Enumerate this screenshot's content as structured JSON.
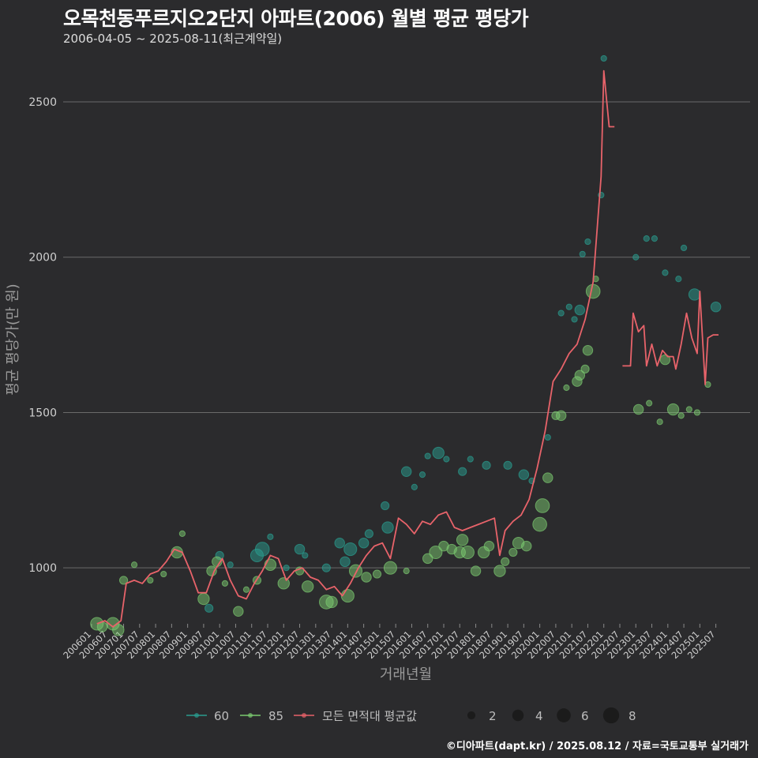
{
  "header": {
    "title": "오목천동푸르지오2단지 아파트(2006) 월별 평균 평당가",
    "subtitle": "2006-04-05 ~ 2025-08-11(최근계약일)"
  },
  "caption": "©디아파트(dapt.kr) / 2025.08.12 / 자료=국토교통부 실거래가",
  "colors": {
    "s60": "#2a9d8f",
    "s85": "#7bc96f",
    "avg": "#e8636a",
    "grid": "#6a6a6a"
  },
  "chart_data": {
    "type": "scatter",
    "title": "오목천동푸르지오2단지 아파트(2006) 월별 평균 평당가",
    "xlabel": "거래년월",
    "ylabel": "평균 평당가(만 원)",
    "ylim": [
      820,
      2650
    ],
    "yticks": [
      1000,
      1500,
      2000,
      2500
    ],
    "xlim": [
      "200601",
      "202508"
    ],
    "xticks": [
      "200601",
      "200607",
      "200701",
      "200707",
      "200801",
      "200807",
      "200901",
      "200907",
      "201001",
      "201007",
      "201101",
      "201107",
      "201201",
      "201207",
      "201301",
      "201307",
      "201401",
      "201407",
      "201501",
      "201507",
      "201601",
      "201607",
      "201701",
      "201707",
      "201801",
      "201807",
      "201901",
      "201907",
      "202001",
      "202007",
      "202101",
      "202107",
      "202201",
      "202207",
      "202301",
      "202307",
      "202401",
      "202407",
      "202501",
      "202507"
    ],
    "legend": {
      "series": [
        {
          "name": "60"
        },
        {
          "name": "85"
        },
        {
          "name": "모든 면적대 평균값"
        }
      ],
      "sizes": [
        2,
        4,
        6,
        8
      ]
    },
    "series": [
      {
        "name": "60",
        "type": "scatter",
        "points": [
          {
            "x": "200909",
            "y": 870,
            "n": 2
          },
          {
            "x": "201001",
            "y": 1040,
            "n": 2
          },
          {
            "x": "201005",
            "y": 1010,
            "n": 1
          },
          {
            "x": "201103",
            "y": 1040,
            "n": 5
          },
          {
            "x": "201105",
            "y": 1060,
            "n": 6
          },
          {
            "x": "201108",
            "y": 1100,
            "n": 1
          },
          {
            "x": "201202",
            "y": 1000,
            "n": 1
          },
          {
            "x": "201207",
            "y": 1060,
            "n": 3
          },
          {
            "x": "201209",
            "y": 1040,
            "n": 1
          },
          {
            "x": "201305",
            "y": 1000,
            "n": 2
          },
          {
            "x": "201310",
            "y": 1080,
            "n": 3
          },
          {
            "x": "201312",
            "y": 1020,
            "n": 3
          },
          {
            "x": "201402",
            "y": 1060,
            "n": 5
          },
          {
            "x": "201407",
            "y": 1080,
            "n": 3
          },
          {
            "x": "201409",
            "y": 1110,
            "n": 2
          },
          {
            "x": "201503",
            "y": 1200,
            "n": 2
          },
          {
            "x": "201504",
            "y": 1130,
            "n": 4
          },
          {
            "x": "201511",
            "y": 1310,
            "n": 3
          },
          {
            "x": "201602",
            "y": 1260,
            "n": 1
          },
          {
            "x": "201605",
            "y": 1300,
            "n": 1
          },
          {
            "x": "201607",
            "y": 1360,
            "n": 1
          },
          {
            "x": "201611",
            "y": 1370,
            "n": 4
          },
          {
            "x": "201702",
            "y": 1350,
            "n": 1
          },
          {
            "x": "201708",
            "y": 1310,
            "n": 2
          },
          {
            "x": "201711",
            "y": 1350,
            "n": 1
          },
          {
            "x": "201805",
            "y": 1330,
            "n": 2
          },
          {
            "x": "201901",
            "y": 1330,
            "n": 2
          },
          {
            "x": "201907",
            "y": 1300,
            "n": 3
          },
          {
            "x": "201910",
            "y": 1280,
            "n": 1
          },
          {
            "x": "202004",
            "y": 1420,
            "n": 1
          },
          {
            "x": "202009",
            "y": 1820,
            "n": 1
          },
          {
            "x": "202012",
            "y": 1840,
            "n": 1
          },
          {
            "x": "202102",
            "y": 1800,
            "n": 1
          },
          {
            "x": "202104",
            "y": 1830,
            "n": 3
          },
          {
            "x": "202105",
            "y": 2010,
            "n": 1
          },
          {
            "x": "202107",
            "y": 2050,
            "n": 1
          },
          {
            "x": "202112",
            "y": 2200,
            "n": 1
          },
          {
            "x": "202201",
            "y": 2640,
            "n": 1
          },
          {
            "x": "202301",
            "y": 2000,
            "n": 1
          },
          {
            "x": "202305",
            "y": 2060,
            "n": 1
          },
          {
            "x": "202308",
            "y": 2060,
            "n": 1
          },
          {
            "x": "202312",
            "y": 1950,
            "n": 1
          },
          {
            "x": "202405",
            "y": 1930,
            "n": 1
          },
          {
            "x": "202407",
            "y": 2030,
            "n": 1
          },
          {
            "x": "202411",
            "y": 1880,
            "n": 4
          },
          {
            "x": "202507",
            "y": 1840,
            "n": 3
          }
        ]
      },
      {
        "name": "85",
        "type": "scatter",
        "points": [
          {
            "x": "200603",
            "y": 820,
            "n": 5
          },
          {
            "x": "200605",
            "y": 810,
            "n": 3
          },
          {
            "x": "200609",
            "y": 820,
            "n": 5
          },
          {
            "x": "200611",
            "y": 800,
            "n": 4
          },
          {
            "x": "200701",
            "y": 960,
            "n": 2
          },
          {
            "x": "200705",
            "y": 1010,
            "n": 1
          },
          {
            "x": "200711",
            "y": 960,
            "n": 1
          },
          {
            "x": "200804",
            "y": 980,
            "n": 1
          },
          {
            "x": "200809",
            "y": 1050,
            "n": 4
          },
          {
            "x": "200811",
            "y": 1110,
            "n": 1
          },
          {
            "x": "200907",
            "y": 900,
            "n": 4
          },
          {
            "x": "200910",
            "y": 990,
            "n": 3
          },
          {
            "x": "200912",
            "y": 1020,
            "n": 3
          },
          {
            "x": "201003",
            "y": 950,
            "n": 1
          },
          {
            "x": "201008",
            "y": 860,
            "n": 3
          },
          {
            "x": "201011",
            "y": 930,
            "n": 1
          },
          {
            "x": "201103",
            "y": 960,
            "n": 2
          },
          {
            "x": "201108",
            "y": 1010,
            "n": 4
          },
          {
            "x": "201201",
            "y": 950,
            "n": 4
          },
          {
            "x": "201207",
            "y": 990,
            "n": 2
          },
          {
            "x": "201210",
            "y": 940,
            "n": 4
          },
          {
            "x": "201305",
            "y": 890,
            "n": 6
          },
          {
            "x": "201307",
            "y": 890,
            "n": 4
          },
          {
            "x": "201401",
            "y": 910,
            "n": 5
          },
          {
            "x": "201404",
            "y": 990,
            "n": 5
          },
          {
            "x": "201408",
            "y": 970,
            "n": 3
          },
          {
            "x": "201412",
            "y": 980,
            "n": 2
          },
          {
            "x": "201505",
            "y": 1000,
            "n": 5
          },
          {
            "x": "201511",
            "y": 990,
            "n": 1
          },
          {
            "x": "201607",
            "y": 1030,
            "n": 3
          },
          {
            "x": "201610",
            "y": 1050,
            "n": 5
          },
          {
            "x": "201701",
            "y": 1070,
            "n": 3
          },
          {
            "x": "201704",
            "y": 1060,
            "n": 3
          },
          {
            "x": "201707",
            "y": 1050,
            "n": 4
          },
          {
            "x": "201708",
            "y": 1090,
            "n": 4
          },
          {
            "x": "201710",
            "y": 1050,
            "n": 5
          },
          {
            "x": "201801",
            "y": 990,
            "n": 3
          },
          {
            "x": "201804",
            "y": 1050,
            "n": 4
          },
          {
            "x": "201806",
            "y": 1070,
            "n": 3
          },
          {
            "x": "201810",
            "y": 990,
            "n": 4
          },
          {
            "x": "201812",
            "y": 1020,
            "n": 2
          },
          {
            "x": "201903",
            "y": 1050,
            "n": 2
          },
          {
            "x": "201905",
            "y": 1080,
            "n": 4
          },
          {
            "x": "201908",
            "y": 1070,
            "n": 3
          },
          {
            "x": "202001",
            "y": 1140,
            "n": 6
          },
          {
            "x": "202002",
            "y": 1200,
            "n": 6
          },
          {
            "x": "202004",
            "y": 1290,
            "n": 3
          },
          {
            "x": "202007",
            "y": 1490,
            "n": 2
          },
          {
            "x": "202009",
            "y": 1490,
            "n": 3
          },
          {
            "x": "202011",
            "y": 1580,
            "n": 1
          },
          {
            "x": "202103",
            "y": 1600,
            "n": 3
          },
          {
            "x": "202104",
            "y": 1620,
            "n": 3
          },
          {
            "x": "202106",
            "y": 1640,
            "n": 2
          },
          {
            "x": "202107",
            "y": 1700,
            "n": 3
          },
          {
            "x": "202109",
            "y": 1890,
            "n": 6
          },
          {
            "x": "202110",
            "y": 1930,
            "n": 1
          },
          {
            "x": "202302",
            "y": 1510,
            "n": 3
          },
          {
            "x": "202306",
            "y": 1530,
            "n": 1
          },
          {
            "x": "202310",
            "y": 1470,
            "n": 1
          },
          {
            "x": "202312",
            "y": 1670,
            "n": 3
          },
          {
            "x": "202403",
            "y": 1510,
            "n": 4
          },
          {
            "x": "202406",
            "y": 1490,
            "n": 1
          },
          {
            "x": "202409",
            "y": 1510,
            "n": 1
          },
          {
            "x": "202412",
            "y": 1500,
            "n": 1
          },
          {
            "x": "202504",
            "y": 1590,
            "n": 1
          }
        ]
      },
      {
        "name": "모든 면적대 평균값",
        "type": "line",
        "segments": [
          [
            {
              "x": "200603",
              "y": 820
            },
            {
              "x": "200606",
              "y": 830
            },
            {
              "x": "200609",
              "y": 810
            },
            {
              "x": "200612",
              "y": 830
            },
            {
              "x": "200702",
              "y": 950
            },
            {
              "x": "200705",
              "y": 960
            },
            {
              "x": "200708",
              "y": 950
            },
            {
              "x": "200711",
              "y": 980
            },
            {
              "x": "200802",
              "y": 990
            },
            {
              "x": "200805",
              "y": 1020
            },
            {
              "x": "200808",
              "y": 1060
            },
            {
              "x": "200811",
              "y": 1050
            },
            {
              "x": "200902",
              "y": 990
            },
            {
              "x": "200905",
              "y": 920
            },
            {
              "x": "200908",
              "y": 920
            },
            {
              "x": "200911",
              "y": 990
            },
            {
              "x": "201002",
              "y": 1030
            },
            {
              "x": "201005",
              "y": 960
            },
            {
              "x": "201008",
              "y": 910
            },
            {
              "x": "201011",
              "y": 900
            },
            {
              "x": "201102",
              "y": 950
            },
            {
              "x": "201105",
              "y": 990
            },
            {
              "x": "201108",
              "y": 1040
            },
            {
              "x": "201111",
              "y": 1030
            },
            {
              "x": "201202",
              "y": 960
            },
            {
              "x": "201205",
              "y": 990
            },
            {
              "x": "201208",
              "y": 1000
            },
            {
              "x": "201211",
              "y": 970
            },
            {
              "x": "201302",
              "y": 960
            },
            {
              "x": "201305",
              "y": 930
            },
            {
              "x": "201308",
              "y": 940
            },
            {
              "x": "201311",
              "y": 910
            },
            {
              "x": "201402",
              "y": 950
            },
            {
              "x": "201405",
              "y": 1000
            },
            {
              "x": "201408",
              "y": 1040
            },
            {
              "x": "201411",
              "y": 1070
            },
            {
              "x": "201502",
              "y": 1080
            },
            {
              "x": "201505",
              "y": 1030
            },
            {
              "x": "201508",
              "y": 1160
            },
            {
              "x": "201511",
              "y": 1140
            },
            {
              "x": "201602",
              "y": 1110
            },
            {
              "x": "201605",
              "y": 1150
            },
            {
              "x": "201608",
              "y": 1140
            },
            {
              "x": "201611",
              "y": 1170
            },
            {
              "x": "201702",
              "y": 1180
            },
            {
              "x": "201705",
              "y": 1130
            },
            {
              "x": "201708",
              "y": 1120
            },
            {
              "x": "201711",
              "y": 1130
            },
            {
              "x": "201802",
              "y": 1140
            },
            {
              "x": "201805",
              "y": 1150
            },
            {
              "x": "201808",
              "y": 1160
            },
            {
              "x": "201810",
              "y": 1040
            },
            {
              "x": "201812",
              "y": 1120
            },
            {
              "x": "201903",
              "y": 1150
            },
            {
              "x": "201906",
              "y": 1170
            },
            {
              "x": "201909",
              "y": 1220
            },
            {
              "x": "201912",
              "y": 1320
            },
            {
              "x": "202003",
              "y": 1440
            },
            {
              "x": "202006",
              "y": 1600
            },
            {
              "x": "202009",
              "y": 1640
            },
            {
              "x": "202012",
              "y": 1690
            },
            {
              "x": "202103",
              "y": 1720
            },
            {
              "x": "202106",
              "y": 1800
            },
            {
              "x": "202109",
              "y": 1920
            },
            {
              "x": "202112",
              "y": 2260
            },
            {
              "x": "202201",
              "y": 2600
            },
            {
              "x": "202203",
              "y": 2420
            },
            {
              "x": "202205",
              "y": 2420
            }
          ],
          [
            {
              "x": "202208",
              "y": 1650
            },
            {
              "x": "202211",
              "y": 1650
            },
            {
              "x": "202212",
              "y": 1820
            },
            {
              "x": "202302",
              "y": 1760
            },
            {
              "x": "202304",
              "y": 1780
            },
            {
              "x": "202305",
              "y": 1650
            },
            {
              "x": "202307",
              "y": 1720
            },
            {
              "x": "202309",
              "y": 1650
            },
            {
              "x": "202311",
              "y": 1700
            },
            {
              "x": "202401",
              "y": 1680
            },
            {
              "x": "202403",
              "y": 1680
            },
            {
              "x": "202404",
              "y": 1640
            },
            {
              "x": "202406",
              "y": 1720
            },
            {
              "x": "202408",
              "y": 1820
            },
            {
              "x": "202410",
              "y": 1740
            },
            {
              "x": "202412",
              "y": 1690
            },
            {
              "x": "202501",
              "y": 1890
            },
            {
              "x": "202503",
              "y": 1590
            },
            {
              "x": "202504",
              "y": 1740
            },
            {
              "x": "202506",
              "y": 1750
            },
            {
              "x": "202508",
              "y": 1750
            }
          ]
        ]
      }
    ]
  }
}
